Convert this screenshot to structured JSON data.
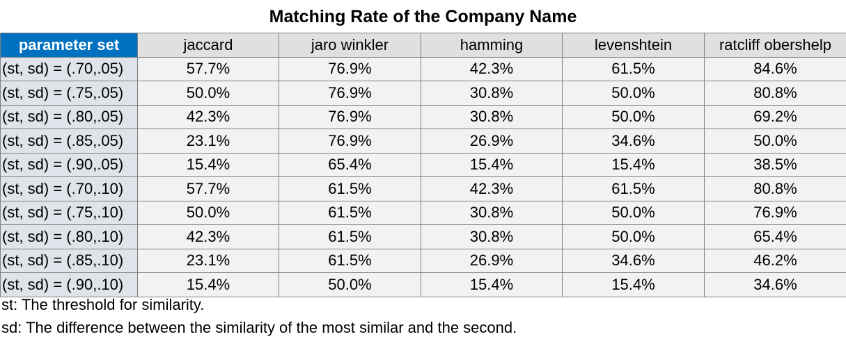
{
  "chart_data": {
    "type": "table",
    "title": "Matching Rate of the Company Name",
    "columns": [
      "parameter set",
      "jaccard",
      "jaro winkler",
      "hamming",
      "levenshtein",
      "ratcliff obershelp"
    ],
    "rows": [
      [
        "(st, sd) = (.70,.05)",
        "57.7%",
        "76.9%",
        "42.3%",
        "61.5%",
        "84.6%"
      ],
      [
        "(st, sd) = (.75,.05)",
        "50.0%",
        "76.9%",
        "30.8%",
        "50.0%",
        "80.8%"
      ],
      [
        "(st, sd) = (.80,.05)",
        "42.3%",
        "76.9%",
        "30.8%",
        "50.0%",
        "69.2%"
      ],
      [
        "(st, sd) = (.85,.05)",
        "23.1%",
        "76.9%",
        "26.9%",
        "34.6%",
        "50.0%"
      ],
      [
        "(st, sd) = (.90,.05)",
        "15.4%",
        "65.4%",
        "15.4%",
        "15.4%",
        "38.5%"
      ],
      [
        "(st, sd) = (.70,.10)",
        "57.7%",
        "61.5%",
        "42.3%",
        "61.5%",
        "80.8%"
      ],
      [
        "(st, sd) = (.75,.10)",
        "50.0%",
        "61.5%",
        "30.8%",
        "50.0%",
        "76.9%"
      ],
      [
        "(st, sd) = (.80,.10)",
        "42.3%",
        "61.5%",
        "30.8%",
        "50.0%",
        "65.4%"
      ],
      [
        "(st, sd) = (.85,.10)",
        "23.1%",
        "61.5%",
        "26.9%",
        "34.6%",
        "46.2%"
      ],
      [
        "(st, sd) = (.90,.10)",
        "15.4%",
        "50.0%",
        "15.4%",
        "15.4%",
        "34.6%"
      ]
    ]
  },
  "notes": [
    "st: The threshold for similarity.",
    "sd: The difference between the similarity of the most similar and the second."
  ],
  "colors": {
    "header_accent": "#0070c0",
    "header_bg": "#e0e0e0",
    "cell_bg": "#f2f2f2"
  }
}
